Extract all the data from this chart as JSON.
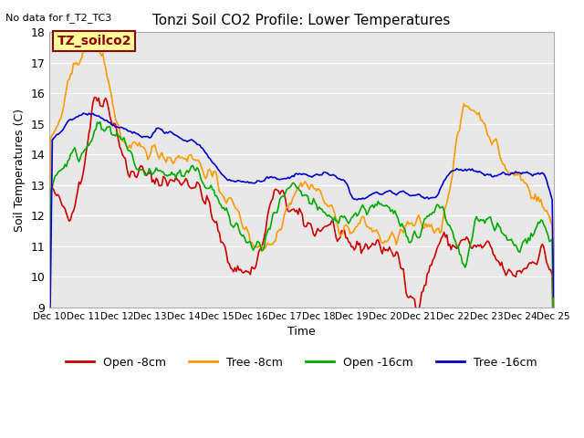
{
  "title": "Tonzi Soil CO2 Profile: Lower Temperatures",
  "subtitle": "No data for f_T2_TC3",
  "ylabel": "Soil Temperatures (C)",
  "xlabel": "Time",
  "ylim": [
    9.0,
    18.0
  ],
  "yticks": [
    9.0,
    10.0,
    11.0,
    12.0,
    13.0,
    14.0,
    15.0,
    16.0,
    17.0,
    18.0
  ],
  "xtick_labels": [
    "Dec 10",
    "Dec 11",
    "Dec 12",
    "Dec 13",
    "Dec 14",
    "Dec 15",
    "Dec 16",
    "Dec 17",
    "Dec 18",
    "Dec 19",
    "Dec 20",
    "Dec 21",
    "Dec 22",
    "Dec 23",
    "Dec 24",
    "Dec 25"
  ],
  "legend_labels": [
    "Open -8cm",
    "Tree -8cm",
    "Open -16cm",
    "Tree -16cm"
  ],
  "legend_colors": [
    "#cc0000",
    "#ff9900",
    "#00aa00",
    "#0000cc"
  ],
  "inset_label": "TZ_soilco2",
  "bg_color": "#e8e8e8",
  "line_width": 1.2
}
